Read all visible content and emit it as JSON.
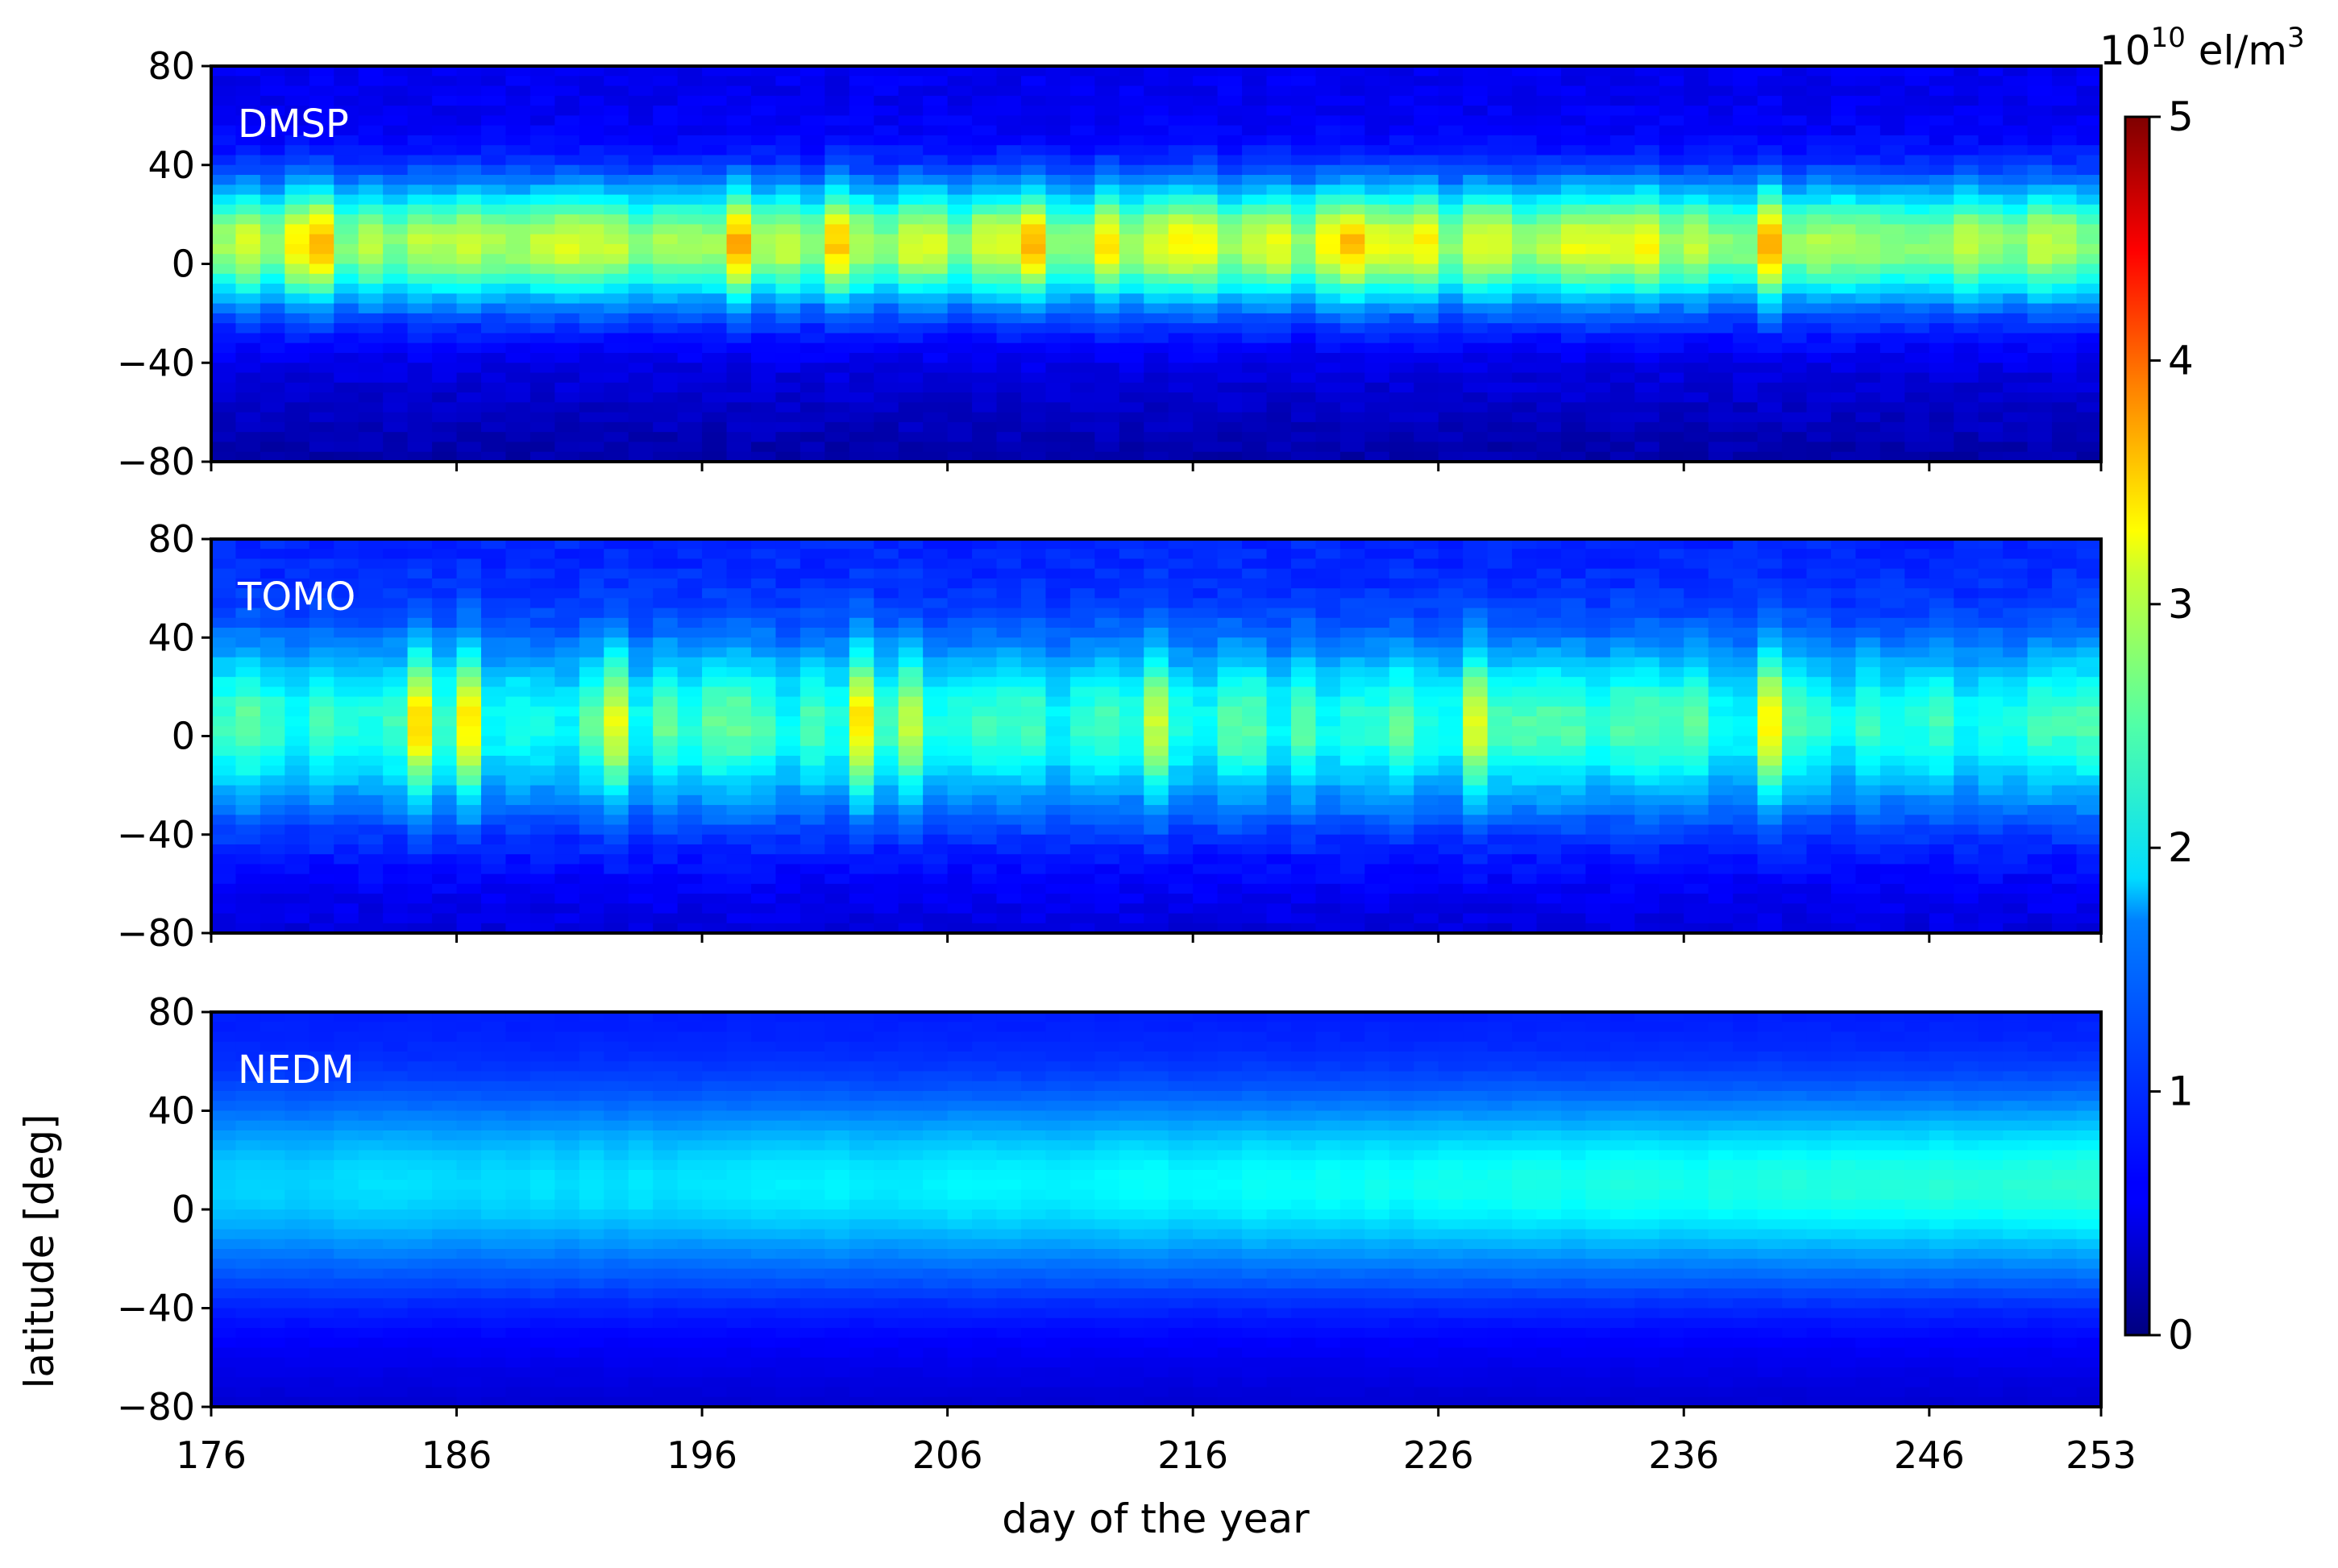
{
  "chart_data": {
    "type": "heatmap",
    "xlabel": "day of the year",
    "ylabel": "latitude [deg]",
    "xlim": [
      176,
      253
    ],
    "ylim": [
      -80,
      80
    ],
    "x_ticks": [
      176,
      186,
      196,
      206,
      216,
      226,
      236,
      246,
      253
    ],
    "y_ticks": [
      80,
      40,
      0,
      -40,
      -80
    ],
    "y_tick_labels": [
      "80",
      "40",
      "0",
      "−40",
      "−80"
    ],
    "colormap": "jet",
    "colorbar": {
      "unit_base": "10",
      "unit_exp": "10",
      "unit_suffix": " el/m",
      "unit_suffix_exp": "3",
      "range": [
        0,
        5
      ],
      "ticks": [
        0,
        1,
        2,
        3,
        4,
        5
      ]
    },
    "panels": [
      {
        "label": "DMSP",
        "peak_latitude": 8,
        "peak_width": 24,
        "background": 0.55,
        "peak_value": 2.75,
        "strong_days": [
          179,
          180,
          197,
          201,
          209,
          212,
          215,
          216,
          221,
          222,
          225,
          234,
          239
        ],
        "notes": "equatorial ionization maximum near 10 deg, values 2.5-3.5"
      },
      {
        "label": "TOMO",
        "peak_latitude": 5,
        "peak_width": 32,
        "background": 0.8,
        "peak_value": 2.1,
        "strong_days": [
          184,
          186,
          192,
          202,
          204,
          214,
          227,
          239
        ],
        "notes": "patchy structure, localized maxima near days 227 and 239"
      },
      {
        "label": "NEDM",
        "peak_latitude": 10,
        "peak_width": 34,
        "background": 0.75,
        "peak_value": 1.65,
        "strong_days": [],
        "notes": "smooth climatology, slowly increasing toward day 253"
      }
    ]
  }
}
